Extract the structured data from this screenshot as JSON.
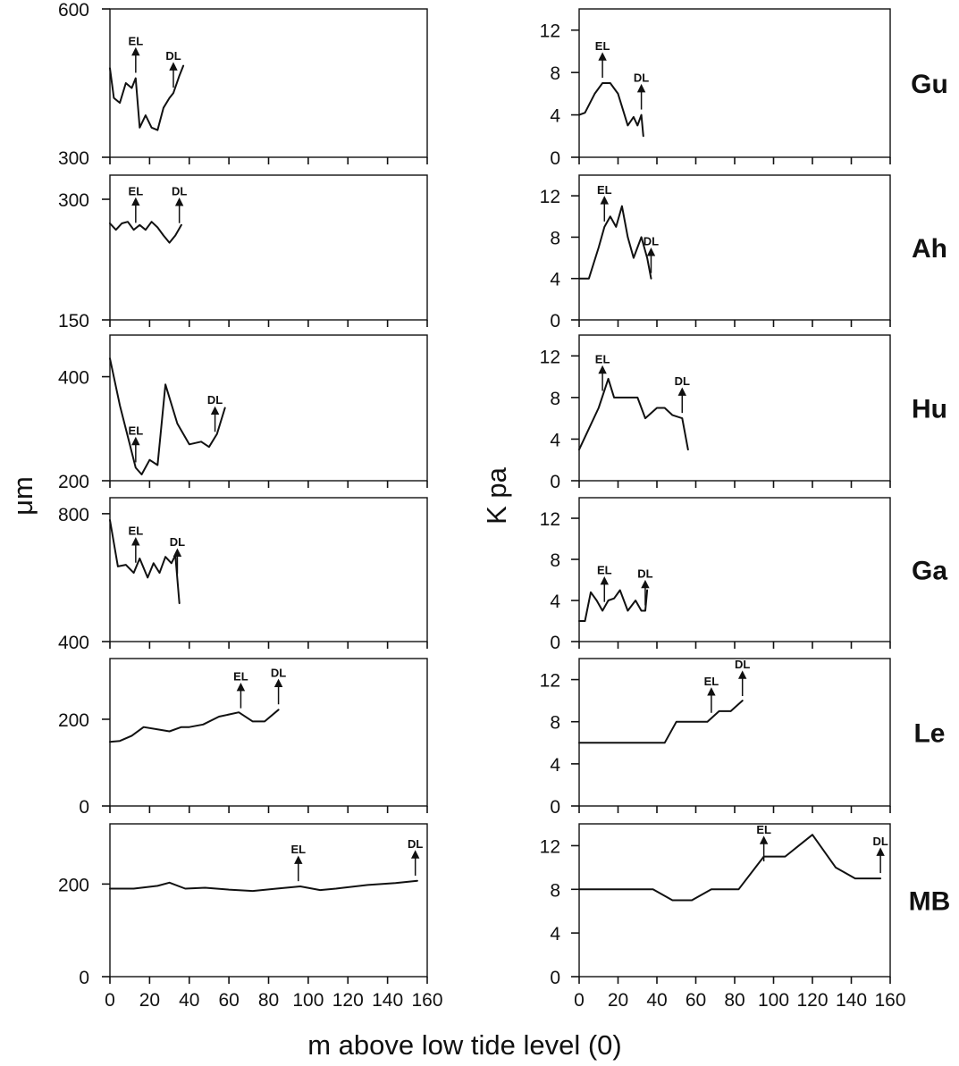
{
  "chart_data": [
    {
      "type": "line",
      "column": "left",
      "site": "Gu",
      "ylim": [
        300,
        600
      ],
      "yticks": [
        300,
        600
      ],
      "xlim": [
        0,
        160
      ],
      "x": [
        0,
        2,
        5,
        8,
        11,
        13,
        15,
        18,
        21,
        24,
        27,
        30,
        32,
        35,
        37
      ],
      "values": [
        480,
        420,
        410,
        450,
        440,
        460,
        360,
        385,
        360,
        355,
        400,
        420,
        430,
        465,
        485
      ],
      "markers": [
        {
          "label": "EL",
          "x": 13
        },
        {
          "label": "DL",
          "x": 32
        }
      ]
    },
    {
      "type": "line",
      "column": "right",
      "site": "Gu",
      "ylim": [
        0,
        14
      ],
      "yticks": [
        0,
        4,
        8,
        12
      ],
      "xlim": [
        0,
        160
      ],
      "x": [
        0,
        3,
        8,
        12,
        16,
        20,
        25,
        28,
        30,
        32,
        33
      ],
      "values": [
        4,
        4.2,
        6,
        7,
        7,
        6,
        3,
        3.8,
        3,
        4,
        2
      ],
      "markers": [
        {
          "label": "EL",
          "x": 12
        },
        {
          "label": "DL",
          "x": 32
        }
      ]
    },
    {
      "type": "line",
      "column": "left",
      "site": "Ah",
      "ylim": [
        150,
        330
      ],
      "yticks": [
        150,
        300
      ],
      "xlim": [
        0,
        160
      ],
      "x": [
        0,
        3,
        6,
        9,
        12,
        15,
        18,
        21,
        24,
        27,
        30,
        33,
        36
      ],
      "values": [
        270,
        262,
        270,
        272,
        262,
        268,
        262,
        272,
        265,
        255,
        246,
        255,
        268
      ],
      "markers": [
        {
          "label": "EL",
          "x": 13
        },
        {
          "label": "DL",
          "x": 35
        }
      ]
    },
    {
      "type": "line",
      "column": "right",
      "site": "Ah",
      "ylim": [
        0,
        14
      ],
      "yticks": [
        0,
        4,
        8,
        12
      ],
      "xlim": [
        0,
        160
      ],
      "x": [
        0,
        5,
        10,
        13,
        16,
        19,
        22,
        25,
        28,
        32,
        35,
        37
      ],
      "values": [
        4,
        4,
        7,
        9,
        10,
        9,
        11,
        8,
        6,
        8,
        6,
        4
      ],
      "markers": [
        {
          "label": "EL",
          "x": 13
        },
        {
          "label": "DL",
          "x": 37
        }
      ]
    },
    {
      "type": "line",
      "column": "left",
      "site": "Hu",
      "ylim": [
        200,
        480
      ],
      "yticks": [
        200,
        400
      ],
      "xlim": [
        0,
        160
      ],
      "x": [
        0,
        5,
        10,
        13,
        16,
        20,
        24,
        28,
        34,
        40,
        46,
        50,
        54,
        58
      ],
      "values": [
        435,
        345,
        270,
        225,
        212,
        240,
        230,
        385,
        310,
        270,
        275,
        265,
        290,
        340
      ],
      "markers": [
        {
          "label": "EL",
          "x": 13
        },
        {
          "label": "DL",
          "x": 53
        }
      ]
    },
    {
      "type": "line",
      "column": "right",
      "site": "Hu",
      "ylim": [
        0,
        14
      ],
      "yticks": [
        0,
        4,
        8,
        12
      ],
      "xlim": [
        0,
        160
      ],
      "x": [
        0,
        5,
        10,
        15,
        18,
        22,
        30,
        34,
        40,
        44,
        48,
        53,
        56
      ],
      "values": [
        3,
        5,
        7,
        9.8,
        8,
        8,
        8,
        6,
        7,
        7,
        6.3,
        6,
        3
      ],
      "markers": [
        {
          "label": "EL",
          "x": 12
        },
        {
          "label": "DL",
          "x": 53
        }
      ]
    },
    {
      "type": "line",
      "column": "left",
      "site": "Ga",
      "ylim": [
        400,
        850
      ],
      "yticks": [
        400,
        800
      ],
      "xlim": [
        0,
        160
      ],
      "x": [
        0,
        4,
        8,
        12,
        15,
        19,
        22,
        25,
        28,
        31,
        33,
        35
      ],
      "values": [
        780,
        635,
        640,
        615,
        660,
        600,
        645,
        615,
        665,
        645,
        670,
        520
      ],
      "markers": [
        {
          "label": "EL",
          "x": 13
        },
        {
          "label": "DL",
          "x": 34
        }
      ]
    },
    {
      "type": "line",
      "column": "right",
      "site": "Ga",
      "ylim": [
        0,
        14
      ],
      "yticks": [
        0,
        4,
        8,
        12
      ],
      "xlim": [
        0,
        160
      ],
      "x": [
        0,
        3,
        6,
        9,
        12,
        15,
        18,
        21,
        25,
        29,
        32,
        34,
        35
      ],
      "values": [
        2,
        2,
        4.8,
        4,
        3,
        4,
        4.2,
        5,
        3,
        4,
        3,
        3,
        5
      ],
      "markers": [
        {
          "label": "EL",
          "x": 13
        },
        {
          "label": "DL",
          "x": 34
        }
      ]
    },
    {
      "type": "line",
      "column": "left",
      "site": "Le",
      "ylim": [
        0,
        340
      ],
      "yticks": [
        0,
        200
      ],
      "xlim": [
        0,
        160
      ],
      "x": [
        0,
        5,
        11,
        17,
        25,
        30,
        36,
        40,
        47,
        55,
        65,
        72,
        78,
        85
      ],
      "values": [
        148,
        150,
        162,
        182,
        176,
        172,
        182,
        182,
        188,
        206,
        216,
        195,
        195,
        222
      ],
      "markers": [
        {
          "label": "EL",
          "x": 66
        },
        {
          "label": "DL",
          "x": 85
        }
      ]
    },
    {
      "type": "line",
      "column": "right",
      "site": "Le",
      "ylim": [
        0,
        14
      ],
      "yticks": [
        0,
        4,
        8,
        12
      ],
      "xlim": [
        0,
        160
      ],
      "x": [
        0,
        44,
        50,
        66,
        72,
        78,
        84
      ],
      "values": [
        6,
        6,
        8,
        8,
        9,
        9,
        10
      ],
      "markers": [
        {
          "label": "EL",
          "x": 68
        },
        {
          "label": "DL",
          "x": 84
        }
      ]
    },
    {
      "type": "line",
      "column": "left",
      "site": "MB",
      "ylim": [
        0,
        330
      ],
      "yticks": [
        0,
        200
      ],
      "xlim": [
        0,
        160
      ],
      "x": [
        0,
        12,
        24,
        30,
        38,
        48,
        60,
        72,
        84,
        96,
        106,
        114,
        130,
        144,
        155
      ],
      "values": [
        190,
        190,
        196,
        203,
        190,
        192,
        188,
        185,
        190,
        195,
        187,
        190,
        198,
        202,
        207
      ],
      "markers": [
        {
          "label": "EL",
          "x": 95
        },
        {
          "label": "DL",
          "x": 154
        }
      ]
    },
    {
      "type": "line",
      "column": "right",
      "site": "MB",
      "ylim": [
        0,
        14
      ],
      "yticks": [
        0,
        4,
        8,
        12
      ],
      "xlim": [
        0,
        160
      ],
      "x": [
        0,
        38,
        48,
        58,
        68,
        82,
        95,
        106,
        120,
        132,
        142,
        155
      ],
      "values": [
        8,
        8,
        7,
        7,
        8,
        8,
        11,
        11,
        13,
        10,
        9,
        9
      ],
      "markers": [
        {
          "label": "EL",
          "x": 95
        },
        {
          "label": "DL",
          "x": 155
        }
      ]
    }
  ],
  "axes": {
    "left_ylabel": "μm",
    "right_ylabel": "K pa",
    "xlabel": "m above low tide level (0)",
    "xticks": [
      0,
      20,
      40,
      60,
      80,
      100,
      120,
      140,
      160
    ],
    "xtick_labels": [
      "0",
      "20",
      "40",
      "60",
      "80",
      "100",
      "120",
      "140",
      "160"
    ]
  },
  "sites": [
    "Gu",
    "Ah",
    "Hu",
    "Ga",
    "Le",
    "MB"
  ]
}
